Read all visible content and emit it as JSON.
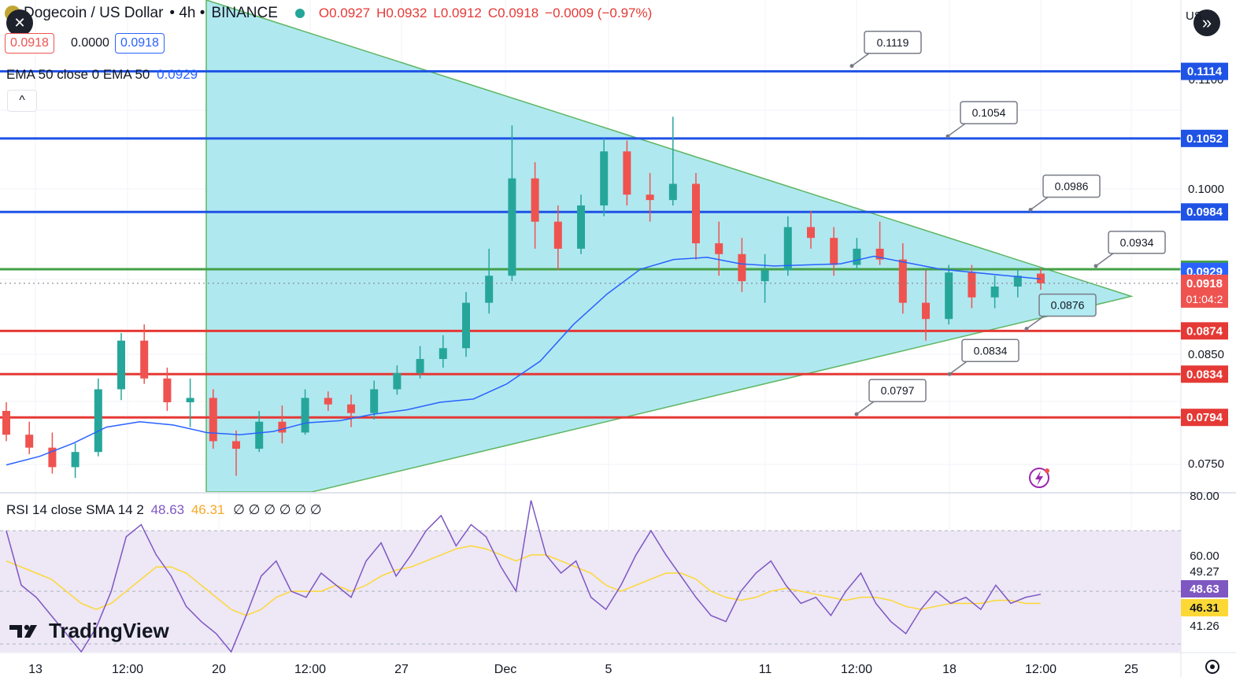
{
  "header": {
    "symbol": "Dogecoin / US Dollar",
    "interval": "4h",
    "exchange": "BINANCE",
    "open": "O0.0927",
    "high": "H0.0932",
    "low": "L0.0912",
    "close": "C0.0918",
    "change": "−0.0009 (−0.97%)",
    "bid": "0.0918",
    "spread": "0.0000",
    "ask": "0.0918",
    "ema_label": "EMA 50 close 0 EMA 50",
    "ema_value": "0.0929",
    "currency": "US"
  },
  "rsi_header": {
    "label": "RSI 14 close SMA 14 2",
    "rsi_value": "48.63",
    "sma_value": "46.31",
    "extras": "∅ ∅ ∅ ∅ ∅ ∅"
  },
  "colors": {
    "up": "#26a69a",
    "down": "#ef5350",
    "ema": "#2962ff",
    "triangle_fill": "#a8e6ef",
    "triangle_edge": "#4caf50",
    "resistance": "#1e53e5",
    "support": "#e53935",
    "mid_line": "#43a047",
    "rsi_line": "#7e57c2",
    "rsi_sma": "#fdd835",
    "rsi_band": "#ede7f6"
  },
  "chart_data": [
    {
      "type": "candlestick",
      "x_ticks": [
        "13",
        "12:00",
        "20",
        "12:00",
        "27",
        "Dec",
        "5",
        "11",
        "12:00",
        "18",
        "12:00",
        "25"
      ],
      "y_ticks": [
        "0.1100",
        "0.1000",
        "0.0850",
        "0.0750"
      ],
      "y_range": [
        0.0725,
        0.118
      ],
      "series": [
        {
          "name": "EMA 50",
          "values": [
            0.075,
            0.0758,
            0.077,
            0.0785,
            0.079,
            0.0787,
            0.078,
            0.0778,
            0.0781,
            0.0789,
            0.0791,
            0.0797,
            0.0801,
            0.0808,
            0.0811,
            0.0825,
            0.0846,
            0.088,
            0.0908,
            0.0931,
            0.094,
            0.0942,
            0.0936,
            0.0934,
            0.0935,
            0.0936,
            0.0943,
            0.0937,
            0.0931,
            0.0928,
            0.0925,
            0.0922
          ]
        },
        {
          "name": "OHLC",
          "values": [
            [
              0.08,
              0.0808,
              0.0772,
              0.0778
            ],
            [
              0.0778,
              0.079,
              0.076,
              0.0766
            ],
            [
              0.0766,
              0.078,
              0.0742,
              0.0748
            ],
            [
              0.0748,
              0.077,
              0.0738,
              0.0762
            ],
            [
              0.0762,
              0.083,
              0.0758,
              0.082
            ],
            [
              0.082,
              0.0872,
              0.081,
              0.0865
            ],
            [
              0.0865,
              0.088,
              0.0825,
              0.083
            ],
            [
              0.083,
              0.084,
              0.08,
              0.0808
            ],
            [
              0.0808,
              0.083,
              0.0785,
              0.0812
            ],
            [
              0.0812,
              0.082,
              0.0765,
              0.0772
            ],
            [
              0.0772,
              0.0782,
              0.074,
              0.0765
            ],
            [
              0.0765,
              0.08,
              0.0762,
              0.079
            ],
            [
              0.079,
              0.0805,
              0.077,
              0.078
            ],
            [
              0.078,
              0.082,
              0.0778,
              0.0812
            ],
            [
              0.0812,
              0.0818,
              0.08,
              0.0806
            ],
            [
              0.0806,
              0.0815,
              0.0785,
              0.0798
            ],
            [
              0.0798,
              0.0828,
              0.0792,
              0.082
            ],
            [
              0.082,
              0.0842,
              0.0815,
              0.0835
            ],
            [
              0.0835,
              0.086,
              0.083,
              0.0848
            ],
            [
              0.0848,
              0.087,
              0.084,
              0.0858
            ],
            [
              0.0858,
              0.091,
              0.085,
              0.09
            ],
            [
              0.09,
              0.095,
              0.089,
              0.0925
            ],
            [
              0.0925,
              0.1064,
              0.092,
              0.1015
            ],
            [
              0.1015,
              0.103,
              0.095,
              0.0975
            ],
            [
              0.0975,
              0.099,
              0.093,
              0.095
            ],
            [
              0.095,
              0.1,
              0.0945,
              0.099
            ],
            [
              0.099,
              0.1052,
              0.098,
              0.104
            ],
            [
              0.104,
              0.105,
              0.099,
              0.1
            ],
            [
              0.1,
              0.102,
              0.0975,
              0.0995
            ],
            [
              0.0995,
              0.1072,
              0.099,
              0.101
            ],
            [
              0.101,
              0.102,
              0.094,
              0.0955
            ],
            [
              0.0955,
              0.0975,
              0.0925,
              0.0945
            ],
            [
              0.0945,
              0.096,
              0.091,
              0.092
            ],
            [
              0.092,
              0.0945,
              0.09,
              0.093
            ],
            [
              0.093,
              0.098,
              0.0925,
              0.097
            ],
            [
              0.097,
              0.0985,
              0.095,
              0.096
            ],
            [
              0.096,
              0.097,
              0.0925,
              0.0935
            ],
            [
              0.0935,
              0.096,
              0.093,
              0.095
            ],
            [
              0.095,
              0.0975,
              0.0935,
              0.094
            ],
            [
              0.094,
              0.0955,
              0.089,
              0.09
            ],
            [
              0.09,
              0.093,
              0.0865,
              0.0885
            ],
            [
              0.0885,
              0.0935,
              0.088,
              0.0928
            ],
            [
              0.0928,
              0.0935,
              0.0895,
              0.0905
            ],
            [
              0.0905,
              0.0925,
              0.0895,
              0.0915
            ],
            [
              0.0915,
              0.0932,
              0.0905,
              0.0925
            ],
            [
              0.0927,
              0.0932,
              0.0912,
              0.0918
            ]
          ]
        }
      ],
      "horizontal_levels": [
        {
          "value": 0.1114,
          "label": "0.1114",
          "kind": "resistance"
        },
        {
          "value": 0.1052,
          "label": "0.1052",
          "kind": "resistance"
        },
        {
          "value": 0.0984,
          "label": "0.0984",
          "kind": "resistance"
        },
        {
          "value": 0.0931,
          "label": "0.0931",
          "kind": "mid"
        },
        {
          "value": 0.0874,
          "label": "0.0874",
          "kind": "support"
        },
        {
          "value": 0.0834,
          "label": "0.0834",
          "kind": "support"
        },
        {
          "value": 0.0794,
          "label": "0.0794",
          "kind": "support"
        }
      ],
      "price_badges": [
        {
          "value": 0.0929,
          "label": "0.0929",
          "kind": "ema"
        },
        {
          "value": 0.0918,
          "label": "0.0918",
          "kind": "last",
          "countdown": "01:04:2"
        }
      ],
      "annotations": [
        {
          "label": "0.1119",
          "value": 0.1119
        },
        {
          "label": "0.1054",
          "value": 0.1054
        },
        {
          "label": "0.0986",
          "value": 0.0986
        },
        {
          "label": "0.0934",
          "value": 0.0934
        },
        {
          "label": "0.0876",
          "value": 0.0876
        },
        {
          "label": "0.0834",
          "value": 0.0834
        },
        {
          "label": "0.0797",
          "value": 0.0797
        }
      ],
      "triangle": {
        "apex_value": 0.0906,
        "top_value": 0.118,
        "bottom_value": 0.0725
      }
    },
    {
      "type": "line",
      "y_ticks": [
        "80.00",
        "60.00",
        "49.27",
        "41.26"
      ],
      "y_range": [
        30,
        82
      ],
      "band": [
        30,
        70
      ],
      "series": [
        {
          "name": "RSI",
          "values": [
            70,
            52,
            48,
            42,
            36,
            30,
            38,
            50,
            68,
            72,
            62,
            55,
            45,
            40,
            36,
            30,
            42,
            55,
            60,
            50,
            48,
            56,
            52,
            48,
            60,
            66,
            55,
            62,
            70,
            75,
            65,
            72,
            68,
            58,
            50,
            80,
            62,
            56,
            60,
            48,
            44,
            52,
            62,
            70,
            62,
            55,
            48,
            42,
            40,
            50,
            56,
            60,
            52,
            46,
            48,
            42,
            50,
            56,
            46,
            40,
            36,
            44,
            50,
            46,
            48,
            44,
            52,
            46,
            48,
            49
          ]
        },
        {
          "name": "SMA",
          "values": [
            60,
            58,
            56,
            54,
            50,
            46,
            44,
            46,
            50,
            54,
            58,
            58,
            56,
            52,
            48,
            44,
            42,
            44,
            48,
            50,
            50,
            50,
            52,
            50,
            52,
            55,
            57,
            58,
            60,
            62,
            64,
            65,
            64,
            62,
            60,
            62,
            62,
            60,
            58,
            56,
            52,
            50,
            52,
            54,
            56,
            56,
            54,
            50,
            48,
            47,
            48,
            50,
            51,
            50,
            49,
            48,
            47,
            48,
            48,
            47,
            45,
            44,
            45,
            46,
            46,
            46,
            47,
            47,
            46,
            46
          ]
        }
      ]
    }
  ],
  "branding": {
    "logo_text": "TradingView"
  },
  "labels": {
    "close_icon": "✕",
    "expand_icon": "»",
    "collapse_icon": "^"
  }
}
